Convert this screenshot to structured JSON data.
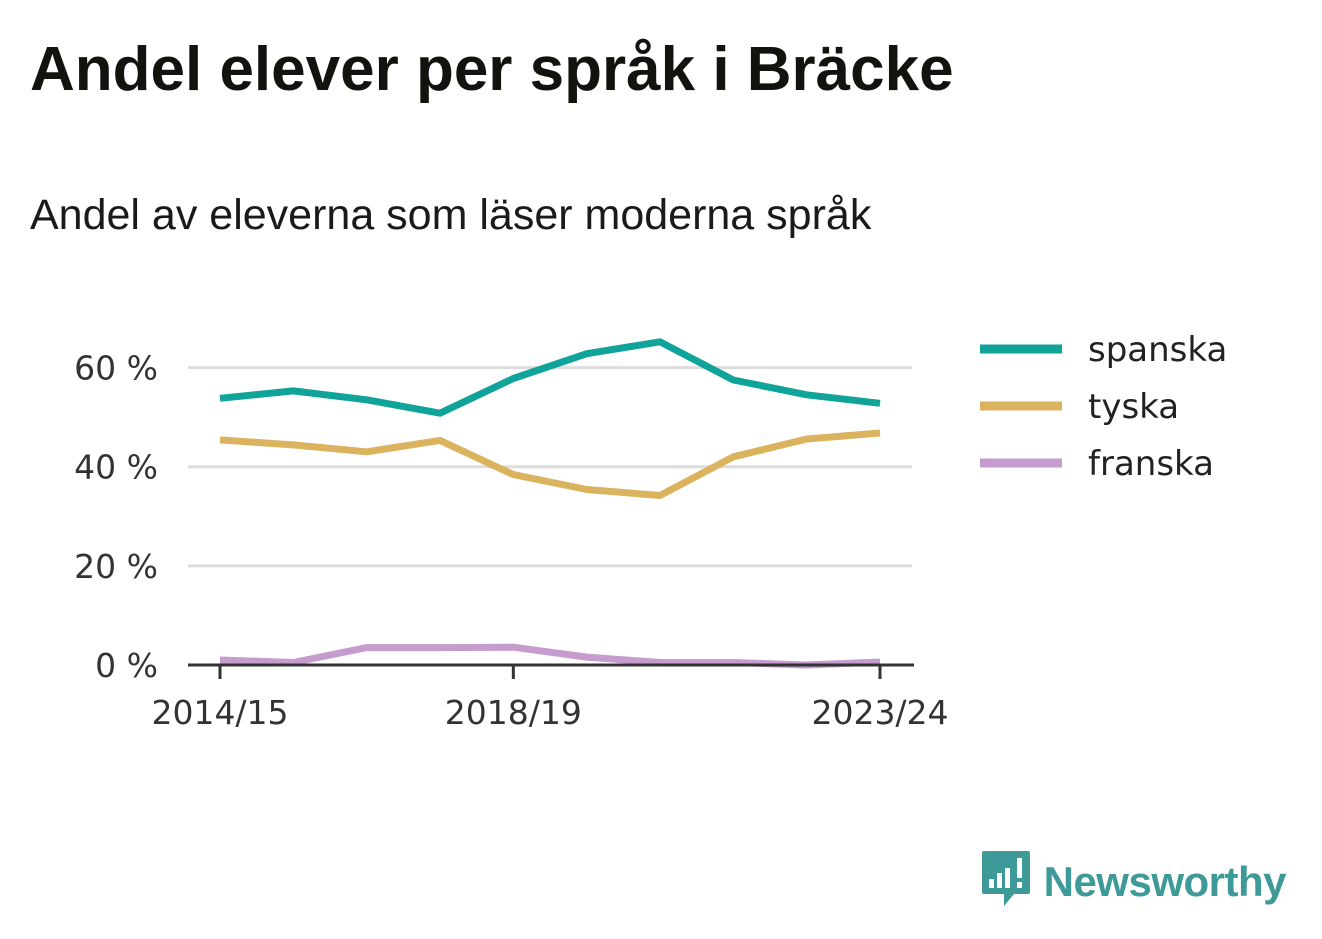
{
  "header": {
    "title": "Andel elever per språk i Bräcke",
    "subtitle": "Andel av eleverna som läser moderna språk"
  },
  "brand": {
    "name": "Newsworthy",
    "icon": "newsworthy-logo-icon",
    "color": "#3e9a98"
  },
  "chart_data": {
    "type": "line",
    "x": [
      "2014/15",
      "2015/16",
      "2016/17",
      "2017/18",
      "2018/19",
      "2019/20",
      "2020/21",
      "2021/22",
      "2022/23",
      "2023/24"
    ],
    "x_tick_labels": [
      "2014/15",
      "2018/19",
      "2023/24"
    ],
    "y_ticks": [
      0,
      20,
      40,
      60
    ],
    "y_tick_labels": [
      "0 %",
      "20 %",
      "40 %",
      "60 %"
    ],
    "ylim": [
      0,
      70
    ],
    "grid": true,
    "legend_position": "right",
    "series": [
      {
        "name": "spanska",
        "color": "#0fa39a",
        "values": [
          53.8,
          55.3,
          53.5,
          50.8,
          57.8,
          62.8,
          65.2,
          57.5,
          54.5,
          52.8
        ]
      },
      {
        "name": "tyska",
        "color": "#dbb35f",
        "values": [
          45.4,
          44.4,
          43.0,
          45.3,
          38.4,
          35.4,
          34.2,
          42.0,
          45.6,
          46.8
        ]
      },
      {
        "name": "franska",
        "color": "#c59ccd",
        "values": [
          1.0,
          0.5,
          3.5,
          3.5,
          3.6,
          1.6,
          0.5,
          0.5,
          0.0,
          0.6
        ]
      }
    ]
  }
}
